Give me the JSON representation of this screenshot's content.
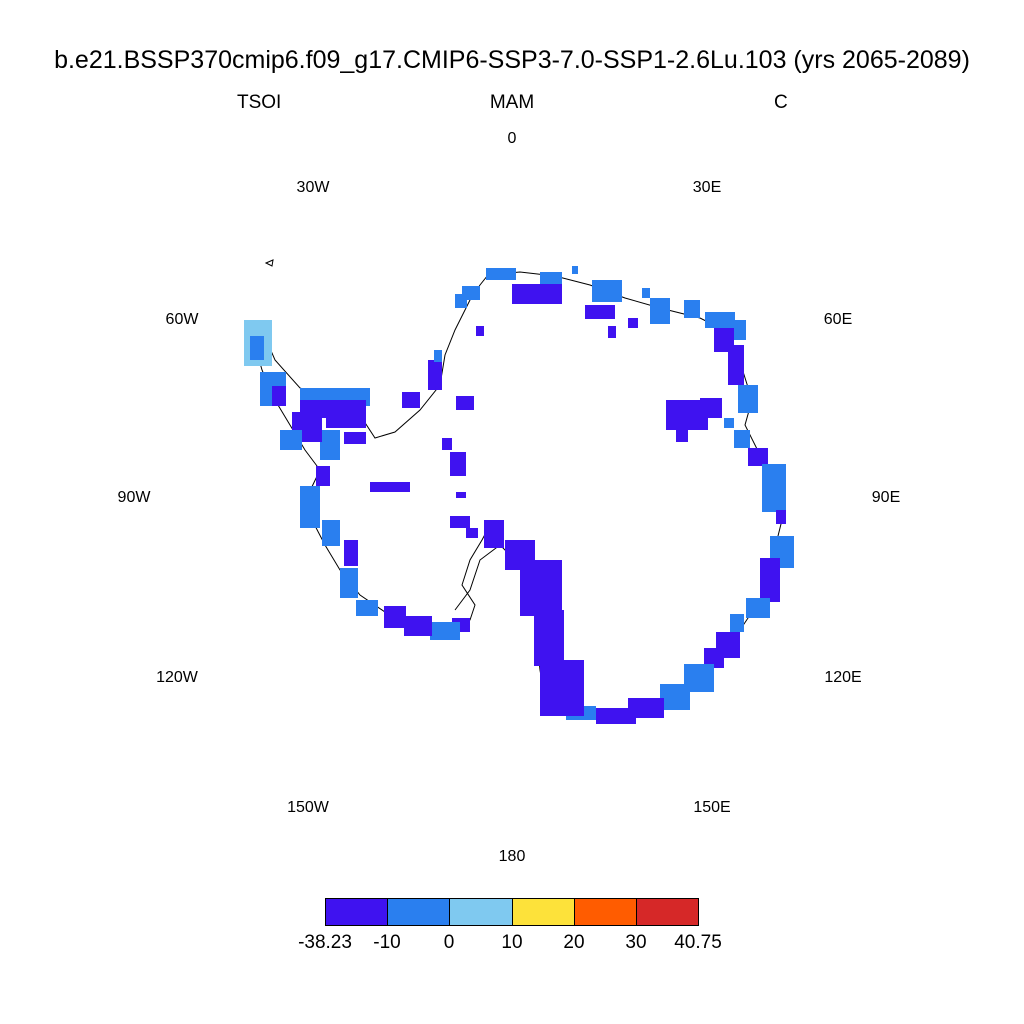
{
  "title": "b.e21.BSSP370cmip6.f09_g17.CMIP6-SSP3-7.0-SSP1-2.6Lu.103 (yrs 2065-2089)",
  "subtitle": {
    "left": "TSOI",
    "center": "MAM",
    "right": "C"
  },
  "longitude_labels": [
    "0",
    "30E",
    "60E",
    "90E",
    "120E",
    "150E",
    "180",
    "150W",
    "120W",
    "90W",
    "60W",
    "30W"
  ],
  "colorbar": {
    "colors": [
      "#3f12f0",
      "#2a7fef",
      "#7fc9f0",
      "#fde23a",
      "#ff5c00",
      "#d62828"
    ],
    "labels": [
      "-38.23",
      "-10",
      "0",
      "10",
      "20",
      "30",
      "40.75"
    ]
  },
  "map": {
    "projection": "south polar stereographic",
    "region": "Antarctica",
    "variable": "TSOI",
    "season": "MAM",
    "units": "C",
    "colors": {
      "land_outline": "#000000",
      "dominant_bin": "#3f12f0",
      "secondary_bin": "#2a7fef",
      "light_bin": "#7fc9f0"
    }
  }
}
